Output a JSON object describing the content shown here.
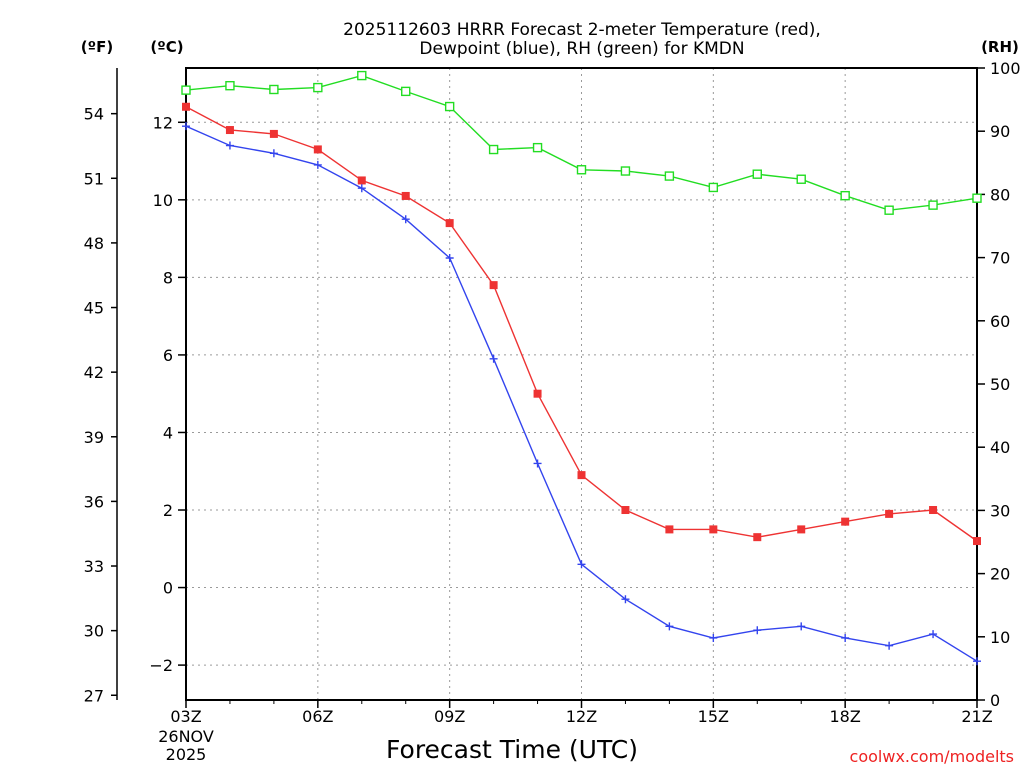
{
  "chart_data": {
    "type": "line",
    "title": [
      "2025112603 HRRR Forecast 2-meter Temperature (red),",
      "Dewpoint (blue), RH (green) for KMDN"
    ],
    "xlabel": "Forecast Time (UTC)",
    "x_ticks": [
      "03Z",
      "06Z",
      "09Z",
      "12Z",
      "15Z",
      "18Z",
      "21Z"
    ],
    "x_start_label": [
      "26NOV",
      "2025"
    ],
    "x_range": [
      3,
      21
    ],
    "x": [
      3,
      4,
      5,
      6,
      7,
      8,
      9,
      10,
      11,
      12,
      13,
      14,
      15,
      16,
      17,
      18,
      19,
      20,
      21
    ],
    "y_celsius": {
      "unit_label": "(ºC)",
      "range": [
        -2.9,
        13.4
      ],
      "ticks": [
        -2,
        0,
        2,
        4,
        6,
        8,
        10,
        12
      ],
      "tick_labels": [
        "−2",
        "0",
        "2",
        "4",
        "6",
        "8",
        "10",
        "12"
      ]
    },
    "y_fahrenheit": {
      "unit_label": "(ºF)",
      "ticks": [
        27,
        30,
        33,
        36,
        39,
        42,
        45,
        48,
        51,
        54
      ]
    },
    "y_rh": {
      "unit_label": "(RH)",
      "range": [
        0,
        100
      ],
      "ticks": [
        0,
        10,
        20,
        30,
        40,
        50,
        60,
        70,
        80,
        90,
        100
      ]
    },
    "series": [
      {
        "name": "Temperature",
        "axis": "celsius",
        "color": "#ee3333",
        "marker": "filled-square",
        "values": [
          12.4,
          11.8,
          11.7,
          11.3,
          10.5,
          10.1,
          9.4,
          7.8,
          5.0,
          2.9,
          2.0,
          1.5,
          1.5,
          1.3,
          1.5,
          1.7,
          1.9,
          2.0,
          1.2
        ]
      },
      {
        "name": "Dewpoint",
        "axis": "celsius",
        "color": "#3344ee",
        "marker": "plus",
        "values": [
          11.9,
          11.4,
          11.2,
          10.9,
          10.3,
          9.5,
          8.5,
          5.9,
          3.2,
          0.6,
          -0.3,
          -1.0,
          -1.3,
          -1.1,
          -1.0,
          -1.3,
          -1.5,
          -1.2,
          -1.9
        ]
      },
      {
        "name": "RH",
        "axis": "rh",
        "color": "#22dd22",
        "marker": "open-square",
        "values": [
          96.5,
          97.2,
          96.6,
          96.9,
          98.8,
          96.3,
          93.9,
          87.1,
          87.4,
          83.9,
          83.7,
          82.9,
          81.1,
          83.2,
          82.4,
          79.8,
          77.5,
          78.3,
          79.4
        ]
      }
    ]
  },
  "credit": "coolwx.com/modelts",
  "colors": {
    "credit": "#ee2222"
  }
}
